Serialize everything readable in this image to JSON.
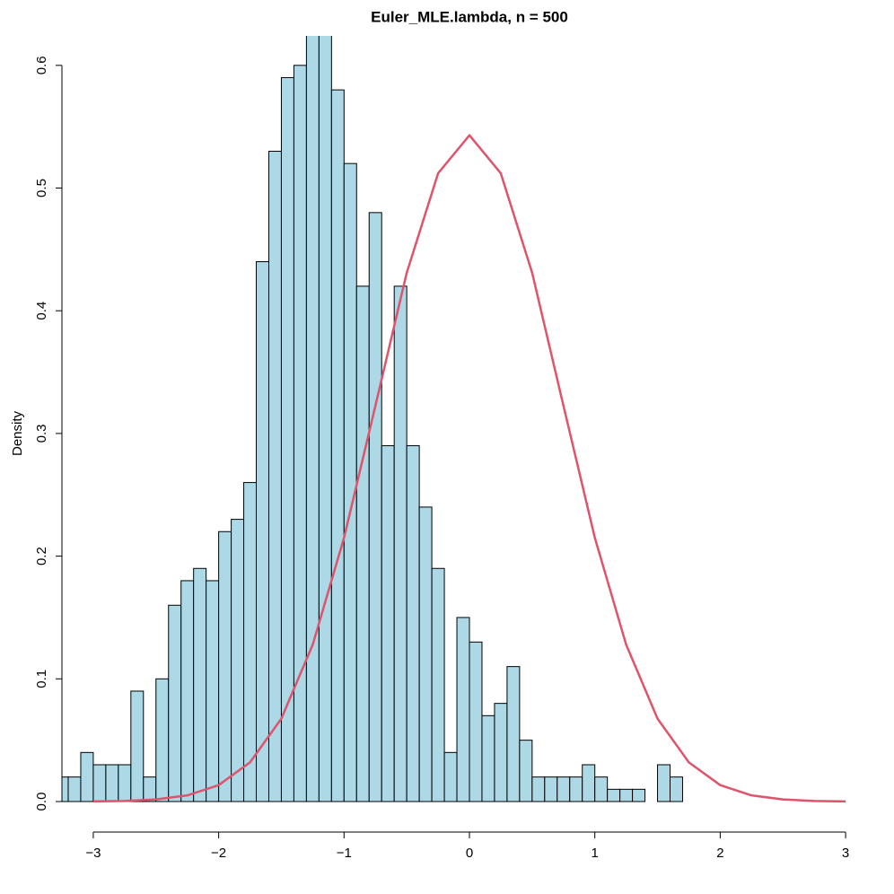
{
  "chart_data": {
    "type": "histogram",
    "title": "Euler_MLE.lambda, n = 500",
    "ylabel": "Density",
    "bins": [
      -3.3,
      -3.2,
      -3.1,
      -3.0,
      -2.9,
      -2.8,
      -2.7,
      -2.6,
      -2.5,
      -2.4,
      -2.3,
      -2.2,
      -2.1,
      -2.0,
      -1.9,
      -1.8,
      -1.7,
      -1.6,
      -1.5,
      -1.4,
      -1.3,
      -1.2,
      -1.1,
      -1.0,
      -0.9,
      -0.8,
      -0.7,
      -0.6,
      -0.5,
      -0.4,
      -0.3,
      -0.2,
      -0.1,
      0.0,
      0.1,
      0.2,
      0.3,
      0.4,
      0.5,
      0.6,
      0.7,
      0.8,
      0.9,
      1.0,
      1.1,
      1.2,
      1.3,
      1.4,
      1.5,
      1.6,
      1.7
    ],
    "values": [
      0.02,
      0.02,
      0.04,
      0.03,
      0.03,
      0.03,
      0.09,
      0.02,
      0.1,
      0.16,
      0.18,
      0.19,
      0.18,
      0.22,
      0.23,
      0.26,
      0.44,
      0.53,
      0.59,
      0.6,
      0.63,
      0.63,
      0.58,
      0.52,
      0.42,
      0.48,
      0.29,
      0.42,
      0.29,
      0.24,
      0.19,
      0.04,
      0.15,
      0.13,
      0.07,
      0.08,
      0.11,
      0.05,
      0.02,
      0.02,
      0.02,
      0.02,
      0.03,
      0.02,
      0.01,
      0.01,
      0.01,
      0,
      0.03,
      0.02
    ],
    "color": "#add8e6",
    "curve": {
      "color": "#DF536B",
      "x": [
        -3,
        -2.75,
        -2.5,
        -2.25,
        -2,
        -1.75,
        -1.5,
        -1.25,
        -1,
        -0.75,
        -0.5,
        -0.25,
        0,
        0.25,
        0.5,
        0.75,
        1,
        1.25,
        1.5,
        1.75,
        2,
        2.25,
        2.5,
        2.75,
        3
      ],
      "values": [
        0.0001,
        0.0005,
        0.0017,
        0.005,
        0.0134,
        0.0319,
        0.0676,
        0.1278,
        0.215,
        0.3225,
        0.431,
        0.512,
        0.543,
        0.512,
        0.431,
        0.3225,
        0.215,
        0.1278,
        0.0676,
        0.0319,
        0.0134,
        0.005,
        0.0017,
        0.0005,
        0.0001
      ]
    },
    "xlim": [
      -3.25,
      3.25
    ],
    "ylim": [
      0,
      0.624
    ],
    "xticks": [
      {
        "value": -3,
        "label": "−3"
      },
      {
        "value": -2,
        "label": "−2"
      },
      {
        "value": -1,
        "label": "−1"
      },
      0,
      1,
      2,
      3
    ],
    "yticks": [
      {
        "value": 0,
        "label": "0.0"
      },
      0.1,
      0.2,
      0.3,
      0.4,
      0.5,
      0.6
    ]
  }
}
